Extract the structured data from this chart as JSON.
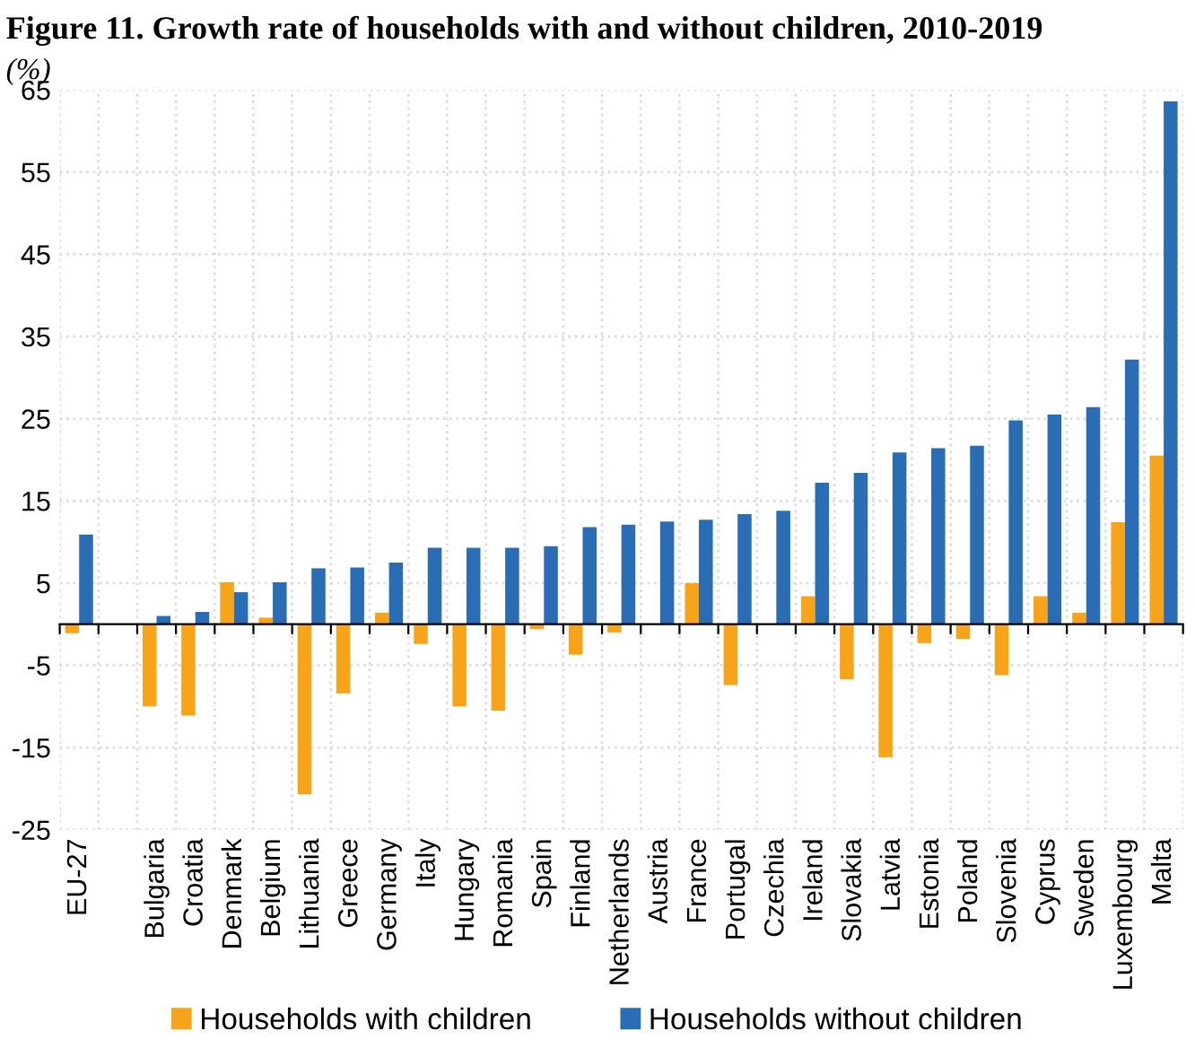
{
  "chart_data": {
    "type": "bar",
    "title": "Figure 11. Growth rate of households with and without children, 2010-2019",
    "ylabel": "(%)",
    "categories": [
      "EU-27",
      null,
      "Bulgaria",
      "Croatia",
      "Denmark",
      "Belgium",
      "Lithuania",
      "Greece",
      "Germany",
      "Italy",
      "Hungary",
      "Romania",
      "Spain",
      "Finland",
      "Netherlands",
      "Austria",
      "France",
      "Portugal",
      "Czechia",
      "Ireland",
      "Slovakia",
      "Latvia",
      "Estonia",
      "Poland",
      "Slovenia",
      "Cyprus",
      "Sweden",
      "Luxembourg",
      "Malta"
    ],
    "series": [
      {
        "name": "Households with children",
        "color": "#f8a41b",
        "values": [
          -1.1,
          null,
          -10.0,
          -11.1,
          5.1,
          0.8,
          -20.7,
          -8.4,
          1.4,
          -2.4,
          -10.0,
          -10.5,
          -0.6,
          -3.7,
          -1.0,
          0,
          5.0,
          -7.4,
          0,
          3.4,
          -6.7,
          -16.2,
          -2.3,
          -1.8,
          -6.2,
          3.4,
          1.4,
          12.4,
          20.5
        ]
      },
      {
        "name": "Households without children",
        "color": "#2a6db5",
        "values": [
          10.9,
          null,
          1.0,
          1.5,
          3.9,
          5.1,
          6.8,
          6.9,
          7.5,
          9.3,
          9.3,
          9.3,
          9.5,
          11.8,
          12.1,
          12.5,
          12.7,
          13.4,
          13.8,
          17.2,
          18.4,
          20.9,
          21.4,
          21.7,
          24.8,
          25.5,
          26.4,
          32.2,
          63.6
        ]
      }
    ],
    "ylim": [
      -25,
      65
    ],
    "yticks": [
      -25,
      -15,
      -5,
      5,
      15,
      25,
      35,
      45,
      55,
      65
    ],
    "grid": true,
    "legend": "bottom"
  }
}
